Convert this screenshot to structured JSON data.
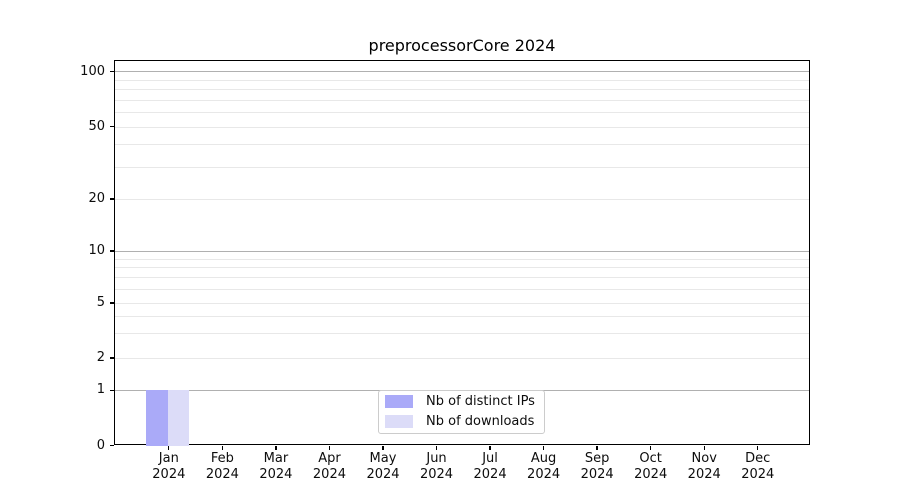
{
  "chart_data": {
    "type": "bar",
    "title": "preprocessorCore 2024",
    "categories": [
      "Jan",
      "Feb",
      "Mar",
      "Apr",
      "May",
      "Jun",
      "Jul",
      "Aug",
      "Sep",
      "Oct",
      "Nov",
      "Dec"
    ],
    "category_year": "2024",
    "series": [
      {
        "name": "Nb of distinct IPs",
        "color": "#aaaaf8",
        "values": [
          1,
          0,
          0,
          0,
          0,
          0,
          0,
          0,
          0,
          0,
          0,
          0
        ]
      },
      {
        "name": "Nb of downloads",
        "color": "#dcdcf8",
        "values": [
          1,
          0,
          0,
          0,
          0,
          0,
          0,
          0,
          0,
          0,
          0,
          0
        ]
      }
    ],
    "y_axis": {
      "scale": "log-like",
      "major_ticks": [
        0,
        1,
        2,
        5,
        10,
        20,
        50,
        100
      ],
      "emphasized_gridlines": [
        1,
        10,
        100
      ],
      "minor_gridlines": [
        3,
        4,
        6,
        7,
        8,
        9,
        30,
        40,
        60,
        70,
        80,
        90
      ]
    },
    "legend": {
      "position": "lower center"
    },
    "grid": {
      "orientation": "horizontal",
      "major_color": "#b0b0b0",
      "minor_color": "#e8e8e8",
      "spine_color": "#000000"
    }
  }
}
